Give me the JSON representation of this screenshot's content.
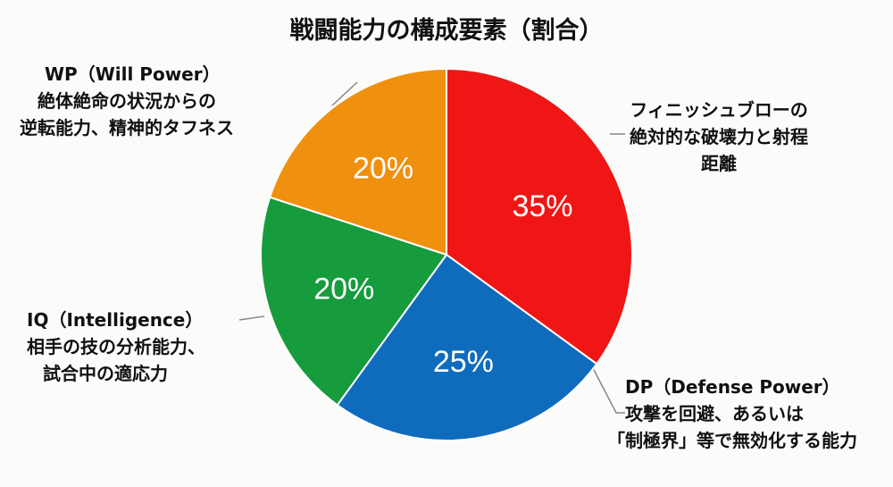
{
  "chart_data": {
    "type": "pie",
    "title": "戦闘能力の構成要素（割合）",
    "slices": [
      {
        "name": "フィニッシュブロー",
        "value": 35,
        "label": "35%",
        "color": "#f01616",
        "desc": [
          "フィニッシュブローの",
          "絶対的な破壊力と射程",
          "距離"
        ]
      },
      {
        "name": "DP（Defense Power）",
        "value": 25,
        "label": "25%",
        "color": "#0f6cbd",
        "desc": [
          "DP（Defense Power）",
          "攻撃を回避、あるいは",
          "「制極界」等で無効化する能力"
        ]
      },
      {
        "name": "IQ（Intelligence）",
        "value": 20,
        "label": "20%",
        "color": "#169b3d",
        "desc": [
          "IQ（Intelligence）",
          "相手の技の分析能力、",
          "試合中の適応力"
        ]
      },
      {
        "name": "WP（Will Power）",
        "value": 20,
        "label": "20%",
        "color": "#f0900f",
        "desc": [
          "WP（Will Power）",
          "絶体絶命の状況からの",
          "逆転能力、精神的タフネス"
        ]
      }
    ],
    "start": "12 o'clock",
    "direction": "clockwise"
  }
}
